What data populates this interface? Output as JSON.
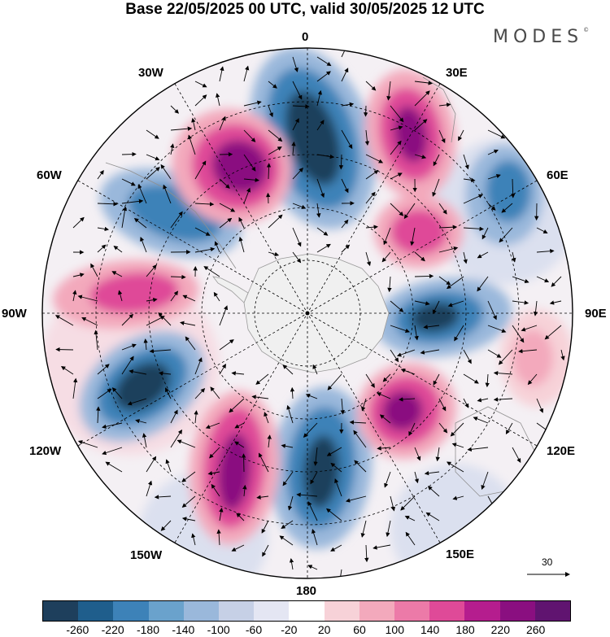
{
  "title": "Base 22/05/2025 00 UTC, valid 30/05/2025 12 UTC",
  "brand": "MODES",
  "brand_mark": "©",
  "lon_labels": {
    "n": "0",
    "ne": "30E",
    "ene": "60E",
    "e": "90E",
    "ese": "120E",
    "se": "150E",
    "s": "180",
    "sw": "150W",
    "wsw": "120W",
    "w": "90W",
    "wnw": "60W",
    "nw": "30W"
  },
  "vector_reference": "30",
  "colorbar": {
    "colors": [
      "#1e3f5c",
      "#1f5e8c",
      "#3d82b8",
      "#6aa2cc",
      "#9ab8db",
      "#c6d0e6",
      "#e4e6f3",
      "#ffffff",
      "#f7d2d8",
      "#f3a9bc",
      "#ec7aa8",
      "#df4a98",
      "#b51d8e",
      "#8a0f80",
      "#601470"
    ],
    "tick_labels": [
      "-260",
      "-220",
      "-180",
      "-140",
      "-100",
      "-60",
      "-20",
      "20",
      "60",
      "100",
      "140",
      "180",
      "220",
      "260"
    ]
  }
}
